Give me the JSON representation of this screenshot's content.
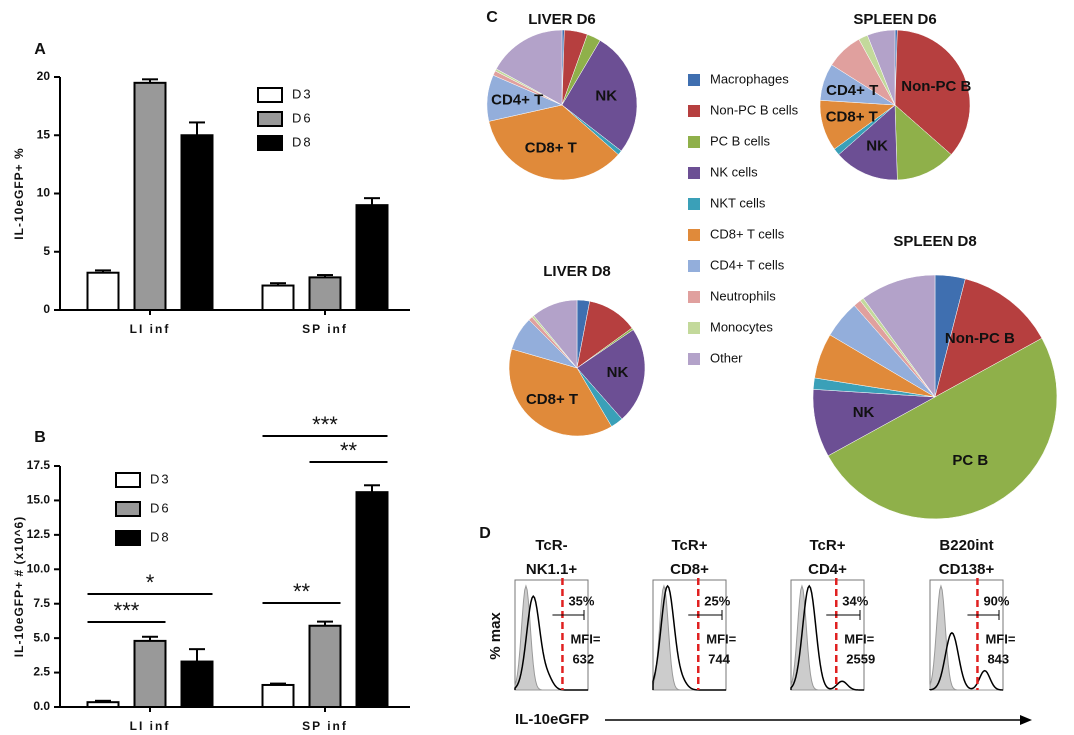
{
  "chart_data": [
    {
      "type": "bar",
      "panel": "A",
      "ylabel": "IL-10eGFP+ %",
      "categories": [
        "LI inf",
        "SP inf"
      ],
      "series": [
        {
          "name": "D3",
          "color": "#ffffff",
          "values": [
            3.2,
            2.1
          ],
          "errors": [
            0.2,
            0.2
          ]
        },
        {
          "name": "D6",
          "color": "#999999",
          "values": [
            19.5,
            2.8
          ],
          "errors": [
            0.3,
            0.2
          ]
        },
        {
          "name": "D8",
          "color": "#000000",
          "values": [
            15.0,
            9.0
          ],
          "errors": [
            1.1,
            0.6
          ]
        }
      ],
      "ylim": [
        0,
        20
      ],
      "yticks": [
        0,
        5,
        10,
        15,
        20
      ]
    },
    {
      "type": "bar",
      "panel": "B",
      "ylabel": "IL-10eGFP+ # (x10^6)",
      "categories": [
        "LI inf",
        "SP inf"
      ],
      "series": [
        {
          "name": "D3",
          "color": "#ffffff",
          "values": [
            0.35,
            1.6
          ],
          "errors": [
            0.1,
            0.1
          ]
        },
        {
          "name": "D6",
          "color": "#999999",
          "values": [
            4.8,
            5.9
          ],
          "errors": [
            0.3,
            0.3
          ]
        },
        {
          "name": "D8",
          "color": "#000000",
          "values": [
            3.3,
            15.6
          ],
          "errors": [
            0.9,
            0.5
          ]
        }
      ],
      "ylim": [
        0,
        17.5
      ],
      "yticks": [
        {
          "value": 0,
          "label": "0.0"
        },
        {
          "value": 2.5,
          "label": "2.5"
        },
        {
          "value": 5,
          "label": "5.0"
        },
        {
          "value": 7.5,
          "label": "7.5"
        },
        {
          "value": 10,
          "label": "10.0"
        },
        {
          "value": 12.5,
          "label": "12.5"
        },
        {
          "value": 15,
          "label": "15.0"
        },
        {
          "value": 17.5,
          "label": "17.5"
        }
      ],
      "significance": [
        {
          "label": "***",
          "category": "LI inf",
          "between": [
            "D3",
            "D6"
          ]
        },
        {
          "label": "*",
          "category": "LI inf",
          "between": [
            "D3",
            "D8"
          ]
        },
        {
          "label": "**",
          "category": "SP inf",
          "between": [
            "D3",
            "D6"
          ]
        },
        {
          "label": "**",
          "category": "SP inf",
          "between": [
            "D6",
            "D8"
          ]
        },
        {
          "label": "***",
          "category": "SP inf",
          "between": [
            "D3",
            "D8"
          ]
        }
      ]
    },
    {
      "type": "pie",
      "panel": "C",
      "categories": [
        "Macrophages",
        "Non-PC B cells",
        "PC B cells",
        "NK cells",
        "NKT cells",
        "CD8+ T cells",
        "CD4+ T cells",
        "Neutrophils",
        "Monocytes",
        "Other"
      ],
      "colors": [
        "#3f6fb0",
        "#b63f3f",
        "#8fb04a",
        "#6c4f94",
        "#3aa0b8",
        "#e08a3a",
        "#93aedb",
        "#e0a09e",
        "#c3d99b",
        "#b3a2c9"
      ],
      "pies": [
        {
          "title": "LIVER D6",
          "values": [
            0.5,
            5,
            3,
            27,
            1,
            35,
            10,
            1,
            0.5,
            17
          ],
          "labels": [
            {
              "text": "NK",
              "category": 3
            },
            {
              "text": "CD8+ T",
              "category": 5
            },
            {
              "text": "CD4+ T",
              "category": 6
            }
          ]
        },
        {
          "title": "SPLEEN D6",
          "values": [
            0.5,
            36,
            13,
            14,
            1.5,
            11,
            8,
            8,
            2,
            6
          ],
          "labels": [
            {
              "text": "Non-PC B",
              "category": 1
            },
            {
              "text": "NK",
              "category": 3
            },
            {
              "text": "CD8+ T",
              "category": 5
            },
            {
              "text": "CD4+ T",
              "category": 6
            }
          ]
        },
        {
          "title": "LIVER D8",
          "values": [
            3,
            12,
            0.5,
            23,
            3,
            38,
            8,
            1,
            0.5,
            11
          ],
          "labels": [
            {
              "text": "NK",
              "category": 3
            },
            {
              "text": "CD8+ T",
              "category": 5
            }
          ]
        },
        {
          "title": "SPLEEN D8",
          "values": [
            4,
            13,
            50,
            9,
            1.5,
            6,
            5,
            1,
            0.5,
            10
          ],
          "labels": [
            {
              "text": "Non-PC B",
              "category": 1
            },
            {
              "text": "PC B",
              "category": 2
            },
            {
              "text": "NK",
              "category": 3
            }
          ]
        }
      ]
    },
    {
      "type": "flow",
      "panel": "D",
      "ylabel": "% max",
      "xlabel": "IL-10eGFP",
      "mfi_prefix": "MFI=",
      "plots": [
        {
          "title": [
            "TcR-",
            "NK1.1+"
          ],
          "value": 35,
          "value_label": "35%",
          "mfi": 632
        },
        {
          "title": [
            "TcR+",
            "CD8+"
          ],
          "value": 25,
          "value_label": "25%",
          "mfi": 744
        },
        {
          "title": [
            "TcR+",
            "CD4+"
          ],
          "value": 34,
          "value_label": "34%",
          "mfi": 2559
        },
        {
          "title": [
            "B220int",
            "CD138+"
          ],
          "value": 90,
          "value_label": "90%",
          "mfi": 843
        }
      ]
    }
  ]
}
